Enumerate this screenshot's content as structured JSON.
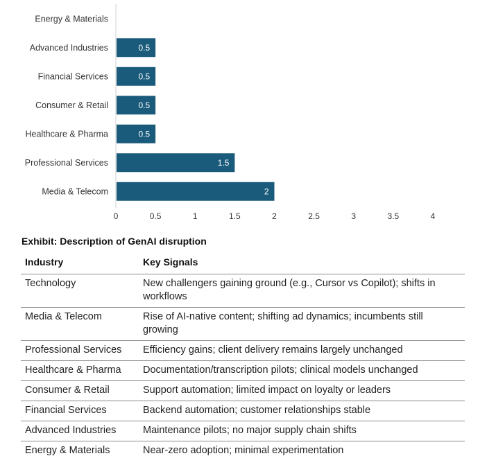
{
  "chart_data": {
    "type": "bar",
    "orientation": "horizontal",
    "categories": [
      "Energy & Materials",
      "Advanced Industries",
      "Financial Services",
      "Consumer & Retail",
      "Healthcare & Pharma",
      "Professional Services",
      "Media & Telecom"
    ],
    "values": [
      0,
      0.5,
      0.5,
      0.5,
      0.5,
      1.5,
      2
    ],
    "data_labels": [
      "",
      "0.5",
      "0.5",
      "0.5",
      "0.5",
      "1.5",
      "2"
    ],
    "xlim": [
      0,
      4
    ],
    "x_ticks": [
      "0",
      "0.5",
      "1",
      "1.5",
      "2",
      "2.5",
      "3",
      "3.5",
      "4"
    ],
    "bar_color": "#1a5a7a",
    "grid": false,
    "title": "",
    "xlabel": "",
    "ylabel": ""
  },
  "exhibit": {
    "title": "Exhibit: Description of GenAI disruption",
    "headers": [
      "Industry",
      "Key Signals"
    ],
    "rows": [
      {
        "industry": "Technology",
        "signals": "New challengers gaining ground (e.g., Cursor vs Copilot); shifts in workflows"
      },
      {
        "industry": "Media & Telecom",
        "signals": "Rise of AI-native content; shifting ad dynamics; incumbents still growing"
      },
      {
        "industry": "Professional Services",
        "signals": "Efficiency gains; client delivery remains largely unchanged"
      },
      {
        "industry": "Healthcare & Pharma",
        "signals": "Documentation/transcription pilots; clinical models unchanged"
      },
      {
        "industry": "Consumer & Retail",
        "signals": "Support automation; limited impact on loyalty or leaders"
      },
      {
        "industry": "Financial Services",
        "signals": "Backend automation; customer relationships stable"
      },
      {
        "industry": "Advanced Industries",
        "signals": "Maintenance pilots; no major supply chain shifts"
      },
      {
        "industry": "Energy & Materials",
        "signals": "Near-zero adoption; minimal experimentation"
      }
    ]
  }
}
